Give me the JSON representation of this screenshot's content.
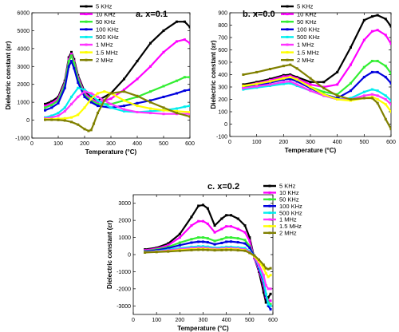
{
  "legend_entries": [
    "5 KHz",
    "10 KHz",
    "50 KHz",
    "100 KHz",
    "500 KHz",
    "1 MHz",
    "1.5 MHz",
    "2 MHz"
  ],
  "series_colors": [
    "#000000",
    "#ff00ff",
    "#33ee33",
    "#0000dd",
    "#00eeee",
    "#ff33ff",
    "#ffff00",
    "#808000"
  ],
  "chart_data": [
    {
      "type": "line",
      "panel": "a.",
      "title": "x=0.1",
      "xlabel": "Temperature (°C)",
      "ylabel": "Dielectric constant (εr)",
      "xlim": [
        0,
        600
      ],
      "ylim": [
        -1000,
        6000
      ],
      "xticks": [
        "0",
        "100",
        "200",
        "300",
        "400",
        "500",
        "600"
      ],
      "yticks": [
        "-1000",
        "0",
        "1000",
        "2000",
        "3000",
        "4000",
        "5000",
        "6000"
      ],
      "legend_position": "top-left-inside",
      "series": [
        {
          "name": "5 KHz",
          "x": [
            50,
            75,
            100,
            125,
            140,
            150,
            160,
            175,
            200,
            225,
            250,
            300,
            350,
            400,
            450,
            500,
            550,
            580,
            600
          ],
          "y": [
            900,
            1050,
            1300,
            2200,
            3500,
            3800,
            3400,
            2500,
            1600,
            1300,
            1100,
            1500,
            2300,
            3300,
            4300,
            5000,
            5500,
            5500,
            5200
          ]
        },
        {
          "name": "10 KHz",
          "x": [
            50,
            75,
            100,
            125,
            140,
            150,
            160,
            175,
            200,
            225,
            250,
            300,
            350,
            400,
            450,
            500,
            550,
            580,
            600
          ],
          "y": [
            800,
            950,
            1200,
            2100,
            3400,
            3700,
            3300,
            2400,
            1500,
            1200,
            1000,
            1200,
            1700,
            2300,
            3000,
            3800,
            4400,
            4500,
            4300
          ]
        },
        {
          "name": "50 KHz",
          "x": [
            50,
            75,
            100,
            125,
            140,
            150,
            160,
            175,
            200,
            225,
            250,
            300,
            350,
            400,
            450,
            500,
            550,
            580,
            600
          ],
          "y": [
            700,
            850,
            1100,
            2000,
            3300,
            3600,
            3200,
            2300,
            1400,
            1100,
            900,
            900,
            1100,
            1300,
            1600,
            1900,
            2200,
            2400,
            2400
          ]
        },
        {
          "name": "100 KHz",
          "x": [
            50,
            75,
            100,
            125,
            140,
            150,
            160,
            175,
            200,
            225,
            250,
            300,
            350,
            400,
            450,
            500,
            550,
            580,
            600
          ],
          "y": [
            550,
            700,
            950,
            1800,
            3000,
            3300,
            2900,
            2100,
            1300,
            1000,
            800,
            700,
            800,
            950,
            1100,
            1300,
            1500,
            1650,
            1700
          ]
        },
        {
          "name": "500 KHz",
          "x": [
            50,
            75,
            100,
            125,
            150,
            175,
            200,
            225,
            250,
            300,
            350,
            400,
            450,
            500,
            550,
            580,
            600
          ],
          "y": [
            150,
            250,
            400,
            700,
            1300,
            1800,
            1700,
            1400,
            1100,
            700,
            500,
            450,
            500,
            550,
            650,
            750,
            800
          ]
        },
        {
          "name": "1 MHz",
          "x": [
            50,
            75,
            100,
            125,
            150,
            175,
            200,
            225,
            250,
            275,
            300,
            350,
            400,
            450,
            500,
            550,
            600
          ],
          "y": [
            100,
            150,
            250,
            500,
            900,
            1300,
            1600,
            1500,
            1300,
            1100,
            900,
            600,
            450,
            400,
            350,
            350,
            350
          ]
        },
        {
          "name": "1.5 MHz",
          "x": [
            50,
            75,
            100,
            125,
            150,
            175,
            200,
            225,
            250,
            275,
            300,
            350,
            400,
            450,
            500,
            550,
            600
          ],
          "y": [
            50,
            60,
            80,
            100,
            150,
            300,
            700,
            1200,
            1500,
            1600,
            1500,
            1100,
            800,
            650,
            550,
            500,
            450
          ]
        },
        {
          "name": "2 MHz",
          "x": [
            50,
            75,
            100,
            125,
            150,
            175,
            200,
            215,
            225,
            235,
            250,
            275,
            300,
            350,
            400,
            450,
            500,
            550,
            600
          ],
          "y": [
            20,
            20,
            10,
            -20,
            -100,
            -250,
            -500,
            -600,
            -550,
            -200,
            400,
            1100,
            1500,
            1600,
            1350,
            1000,
            700,
            400,
            200
          ]
        }
      ]
    },
    {
      "type": "line",
      "panel": "b.",
      "title": "x=0.0",
      "xlabel": "Temperature (°C)",
      "ylabel": "Dielectric constant (εr)",
      "xlim": [
        0,
        600
      ],
      "ylim": [
        -100,
        900
      ],
      "xticks": [
        "0",
        "100",
        "200",
        "300",
        "400",
        "500",
        "600"
      ],
      "yticks": [
        "-100",
        "0",
        "100",
        "200",
        "300",
        "400",
        "500",
        "600",
        "700",
        "800",
        "900"
      ],
      "legend_position": "top-right-inside",
      "series": [
        {
          "name": "5 KHz",
          "x": [
            50,
            100,
            150,
            200,
            225,
            250,
            300,
            350,
            400,
            450,
            500,
            530,
            550,
            580,
            600
          ],
          "y": [
            320,
            340,
            365,
            395,
            400,
            380,
            340,
            340,
            420,
            620,
            840,
            870,
            880,
            850,
            790
          ]
        },
        {
          "name": "10 KHz",
          "x": [
            50,
            100,
            150,
            200,
            225,
            250,
            300,
            350,
            400,
            450,
            500,
            530,
            550,
            580,
            600
          ],
          "y": [
            310,
            330,
            355,
            385,
            390,
            370,
            320,
            300,
            320,
            480,
            680,
            750,
            760,
            720,
            650
          ]
        },
        {
          "name": "50 KHz",
          "x": [
            50,
            100,
            150,
            200,
            225,
            250,
            300,
            350,
            400,
            450,
            500,
            530,
            550,
            580,
            600
          ],
          "y": [
            300,
            320,
            345,
            370,
            375,
            355,
            300,
            260,
            240,
            330,
            460,
            510,
            510,
            470,
            410
          ]
        },
        {
          "name": "100 KHz",
          "x": [
            50,
            100,
            150,
            200,
            225,
            250,
            300,
            350,
            400,
            450,
            500,
            530,
            550,
            580,
            600
          ],
          "y": [
            290,
            310,
            335,
            360,
            365,
            345,
            290,
            240,
            210,
            270,
            380,
            420,
            420,
            380,
            330
          ]
        },
        {
          "name": "500 KHz",
          "x": [
            50,
            100,
            150,
            200,
            225,
            250,
            300,
            350,
            400,
            450,
            500,
            530,
            550,
            580,
            600
          ],
          "y": [
            280,
            295,
            310,
            325,
            330,
            310,
            270,
            230,
            200,
            210,
            260,
            280,
            270,
            230,
            190
          ]
        },
        {
          "name": "1 MHz",
          "x": [
            50,
            100,
            150,
            200,
            225,
            250,
            300,
            350,
            400,
            450,
            500,
            530,
            550,
            580,
            600
          ],
          "y": [
            290,
            305,
            320,
            340,
            345,
            320,
            270,
            230,
            200,
            200,
            230,
            240,
            230,
            200,
            160
          ]
        },
        {
          "name": "1.5 MHz",
          "x": [
            50,
            100,
            150,
            200,
            225,
            250,
            300,
            350,
            400,
            450,
            500,
            530,
            550,
            580,
            600
          ],
          "y": [
            310,
            325,
            345,
            370,
            380,
            360,
            300,
            240,
            200,
            190,
            210,
            220,
            200,
            160,
            100
          ]
        },
        {
          "name": "2 MHz",
          "x": [
            50,
            100,
            150,
            200,
            225,
            250,
            300,
            350,
            400,
            450,
            500,
            530,
            550,
            580,
            600
          ],
          "y": [
            400,
            420,
            445,
            470,
            480,
            450,
            370,
            290,
            230,
            200,
            210,
            210,
            170,
            40,
            -40
          ]
        }
      ]
    },
    {
      "type": "line",
      "panel": "c.",
      "title": "x=0.2",
      "xlabel": "Temperature (°C)",
      "ylabel": "Dielectric constant (εr)",
      "xlim": [
        0,
        600
      ],
      "ylim": [
        -3500,
        3500
      ],
      "xticks": [
        "0",
        "100",
        "200",
        "300",
        "400",
        "500",
        "600"
      ],
      "yticks": [
        "-3000",
        "-2000",
        "-1000",
        "0",
        "1000",
        "2000",
        "3000"
      ],
      "legend_position": "top-right-outside",
      "series": [
        {
          "name": "5 KHz",
          "x": [
            50,
            100,
            150,
            200,
            250,
            280,
            300,
            320,
            350,
            380,
            400,
            420,
            450,
            480,
            500,
            520,
            540,
            560,
            570,
            580,
            590
          ],
          "y": [
            300,
            400,
            650,
            1200,
            2200,
            2850,
            2900,
            2700,
            1700,
            2100,
            2300,
            2300,
            2100,
            1700,
            1000,
            -200,
            -1000,
            -2200,
            -2800,
            -2500,
            -2300
          ]
        },
        {
          "name": "10 KHz",
          "x": [
            50,
            100,
            150,
            200,
            250,
            280,
            300,
            320,
            350,
            380,
            400,
            420,
            450,
            480,
            500,
            520,
            540,
            560,
            570,
            580,
            590
          ],
          "y": [
            250,
            350,
            550,
            1000,
            1700,
            1950,
            1950,
            1800,
            1300,
            1500,
            1650,
            1650,
            1500,
            1300,
            800,
            -200,
            -900,
            -1800,
            -2500,
            -2700,
            -2700
          ]
        },
        {
          "name": "50 KHz",
          "x": [
            50,
            100,
            150,
            200,
            250,
            280,
            300,
            320,
            350,
            380,
            400,
            420,
            450,
            480,
            500,
            520,
            540,
            560,
            570,
            580,
            590
          ],
          "y": [
            200,
            300,
            450,
            700,
            900,
            1000,
            1000,
            950,
            800,
            900,
            1000,
            1000,
            950,
            850,
            500,
            -100,
            -800,
            -1600,
            -2300,
            -2800,
            -2900
          ]
        },
        {
          "name": "100 KHz",
          "x": [
            50,
            100,
            150,
            200,
            250,
            280,
            300,
            320,
            350,
            380,
            400,
            420,
            450,
            480,
            500,
            520,
            540,
            560,
            570,
            580,
            590
          ],
          "y": [
            180,
            250,
            380,
            550,
            700,
            750,
            750,
            720,
            600,
            680,
            750,
            760,
            720,
            650,
            400,
            -100,
            -800,
            -1600,
            -2400,
            -3000,
            -3200
          ]
        },
        {
          "name": "500 KHz",
          "x": [
            50,
            100,
            150,
            200,
            250,
            280,
            300,
            320,
            350,
            380,
            400,
            420,
            450,
            480,
            500,
            520,
            540,
            560,
            570,
            580,
            590
          ],
          "y": [
            150,
            200,
            280,
            380,
            450,
            480,
            480,
            460,
            400,
            420,
            450,
            450,
            420,
            380,
            200,
            -100,
            -700,
            -1500,
            -2300,
            -2900,
            -3000
          ]
        },
        {
          "name": "1 MHz",
          "x": [
            50,
            100,
            150,
            200,
            250,
            280,
            300,
            320,
            350,
            380,
            400,
            420,
            450,
            480,
            500,
            520,
            540,
            560,
            570,
            580,
            590
          ],
          "y": [
            140,
            180,
            240,
            320,
            380,
            400,
            400,
            380,
            340,
            350,
            380,
            380,
            350,
            300,
            150,
            -100,
            -600,
            -1200,
            -1800,
            -2000,
            -2000
          ]
        },
        {
          "name": "1.5 MHz",
          "x": [
            50,
            100,
            150,
            200,
            250,
            280,
            300,
            320,
            350,
            380,
            400,
            420,
            450,
            480,
            500,
            520,
            540,
            560,
            570,
            580,
            590
          ],
          "y": [
            130,
            160,
            200,
            260,
            310,
            330,
            330,
            320,
            290,
            300,
            320,
            320,
            300,
            250,
            100,
            -100,
            -400,
            -800,
            -1100,
            -1300,
            -1200
          ]
        },
        {
          "name": "2 MHz",
          "x": [
            50,
            100,
            150,
            200,
            250,
            280,
            300,
            320,
            350,
            380,
            400,
            420,
            450,
            480,
            500,
            520,
            540,
            560,
            570,
            580,
            590
          ],
          "y": [
            120,
            150,
            180,
            220,
            260,
            280,
            280,
            270,
            250,
            260,
            270,
            270,
            250,
            220,
            100,
            -50,
            -300,
            -600,
            -800,
            -850,
            -800
          ]
        }
      ]
    }
  ]
}
